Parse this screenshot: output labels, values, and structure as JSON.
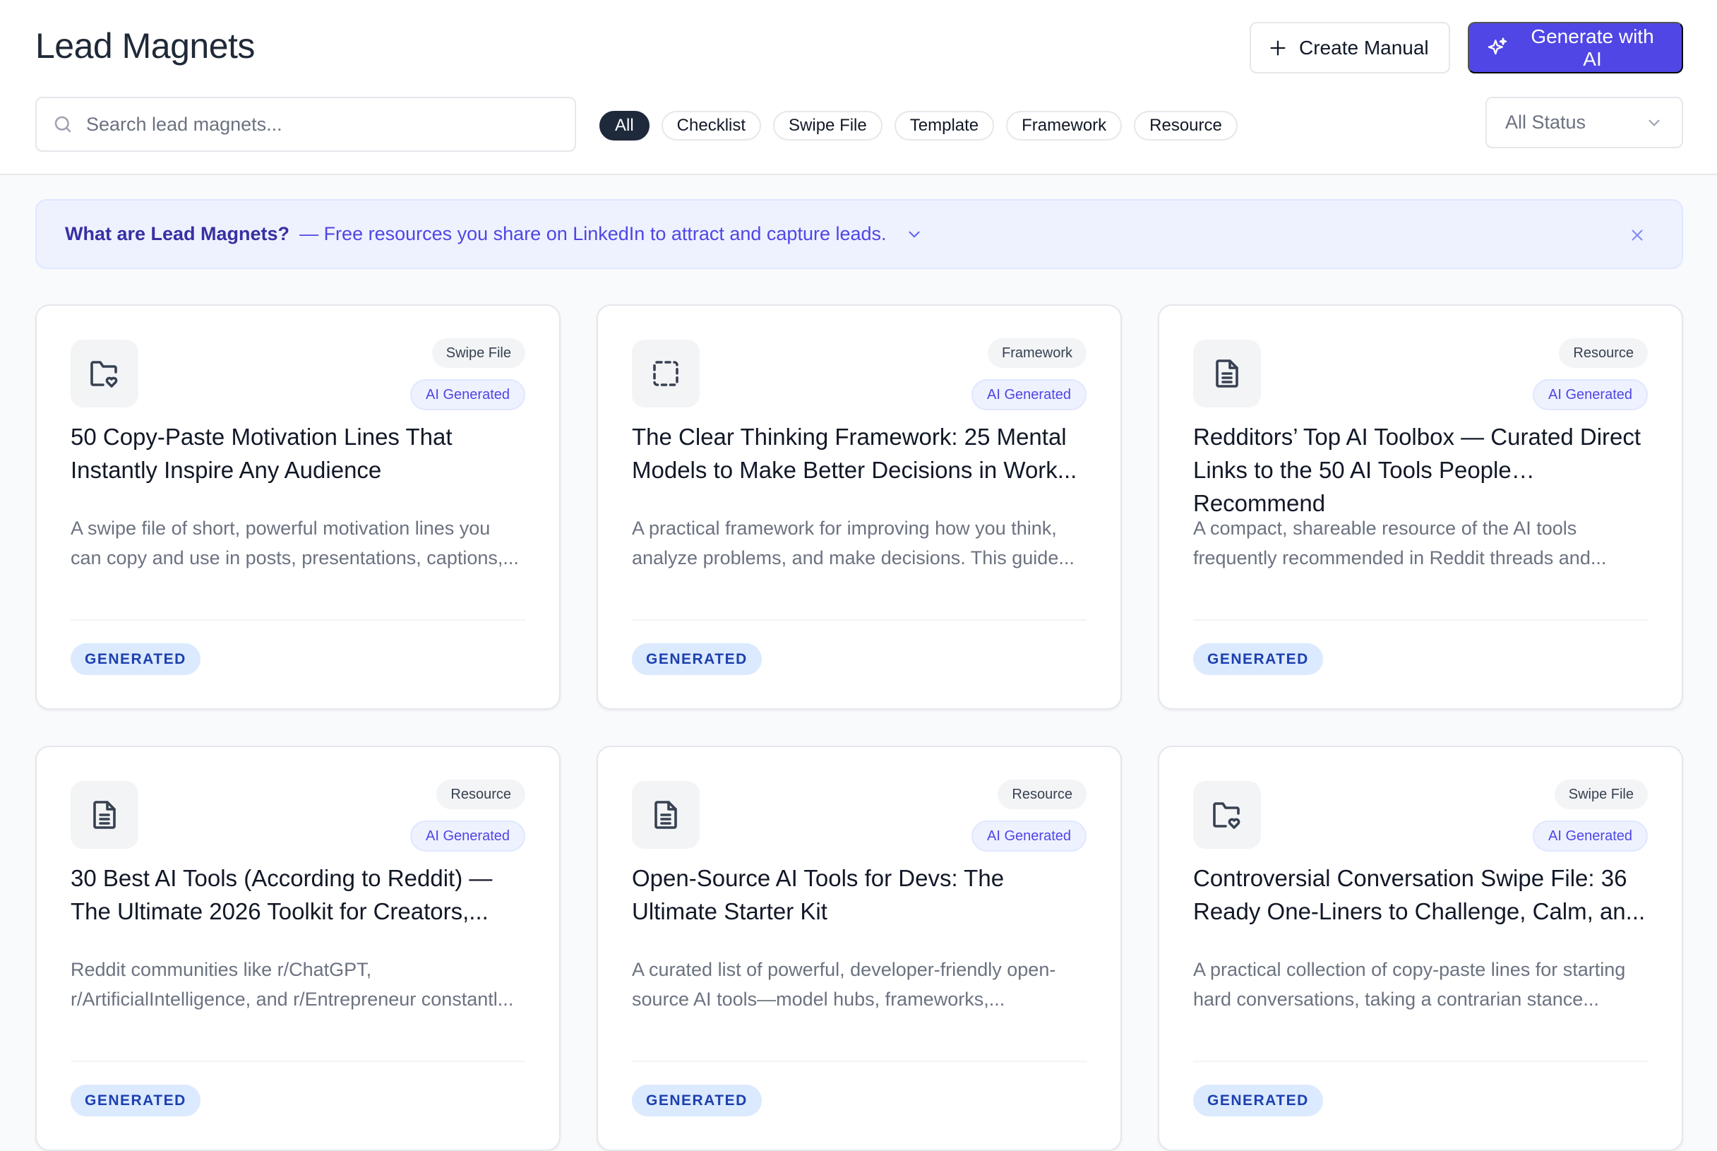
{
  "header": {
    "title": "Lead Magnets",
    "create_label": "Create Manual",
    "generate_label": "Generate with AI",
    "accent": "#4f46e5"
  },
  "search": {
    "placeholder": "Search lead magnets...",
    "value": ""
  },
  "filters": {
    "chips": [
      "All",
      "Checklist",
      "Swipe File",
      "Template",
      "Framework",
      "Resource"
    ],
    "active": "All"
  },
  "status_select": {
    "value": "All Status"
  },
  "banner": {
    "question": "What are Lead Magnets?",
    "description": "— Free resources you share on LinkedIn to attract and capture leads."
  },
  "cards": [
    {
      "icon": "folder-heart-icon",
      "type": "Swipe File",
      "ai": "AI Generated",
      "title": "50 Copy-Paste Motivation Lines That Instantly Inspire Any Audience",
      "description": "A swipe file of short, powerful motivation lines you can copy and use in posts, presentations, captions,...",
      "status": "GENERATED"
    },
    {
      "icon": "dashed-square-icon",
      "type": "Framework",
      "ai": "AI Generated",
      "title": "The Clear Thinking Framework: 25 Mental Models to Make Better Decisions in Work...",
      "description": "A practical framework for improving how you think, analyze problems, and make decisions. This guide...",
      "status": "GENERATED"
    },
    {
      "icon": "document-icon",
      "type": "Resource",
      "ai": "AI Generated",
      "title": "Redditors’ Top AI Toolbox — Curated Direct Links to the 50 AI Tools People Recommend",
      "description": "A compact, shareable resource of the AI tools frequently recommended in Reddit threads and...",
      "status": "GENERATED"
    },
    {
      "icon": "document-icon",
      "type": "Resource",
      "ai": "AI Generated",
      "title": "30 Best AI Tools (According to Reddit) — The Ultimate 2026 Toolkit for Creators,...",
      "description": "Reddit communities like r/ChatGPT, r/ArtificialIntelligence, and r/Entrepreneur constantl...",
      "status": "GENERATED"
    },
    {
      "icon": "document-icon",
      "type": "Resource",
      "ai": "AI Generated",
      "title": "Open-Source AI Tools for Devs: The Ultimate Starter Kit",
      "description": "A curated list of powerful, developer-friendly open-source AI tools—model hubs, frameworks,...",
      "status": "GENERATED"
    },
    {
      "icon": "folder-heart-icon",
      "type": "Swipe File",
      "ai": "AI Generated",
      "title": "Controversial Conversation Swipe File: 36 Ready One-Liners to Challenge, Calm, an...",
      "description": "A practical collection of copy-paste lines for starting hard conversations, taking a contrarian stance...",
      "status": "GENERATED"
    }
  ]
}
